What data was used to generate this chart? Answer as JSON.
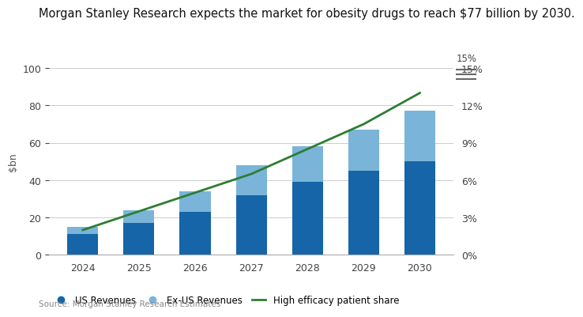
{
  "title": "Morgan Stanley Research expects the market for obesity drugs to reach $77 billion by 2030.",
  "years": [
    2024,
    2025,
    2026,
    2027,
    2028,
    2029,
    2030
  ],
  "us_revenues": [
    11,
    17,
    23,
    32,
    39,
    45,
    50
  ],
  "exus_revenues": [
    4,
    7,
    11,
    16,
    19,
    22,
    27
  ],
  "patient_share": [
    2.0,
    3.5,
    5.0,
    6.5,
    8.5,
    10.5,
    13.0
  ],
  "us_color": "#1565a8",
  "exus_color": "#7ab4d8",
  "line_color": "#2e7d32",
  "ylabel_left": "$bn",
  "ylim_left": [
    0,
    100
  ],
  "ylim_right": [
    0,
    15
  ],
  "yticks_left": [
    0,
    20,
    40,
    60,
    80,
    100
  ],
  "yticks_right": [
    0,
    3,
    6,
    9,
    12,
    15
  ],
  "ytick_labels_right": [
    "0%",
    "3%",
    "6%",
    "9%",
    "12%",
    "15%"
  ],
  "source": "Source: Morgan Stanley Research Estimates",
  "background_color": "#ffffff",
  "legend_labels": [
    "US Revenues",
    "Ex-US Revenues",
    "High efficacy patient share"
  ],
  "title_fontsize": 10.5,
  "axis_fontsize": 9
}
